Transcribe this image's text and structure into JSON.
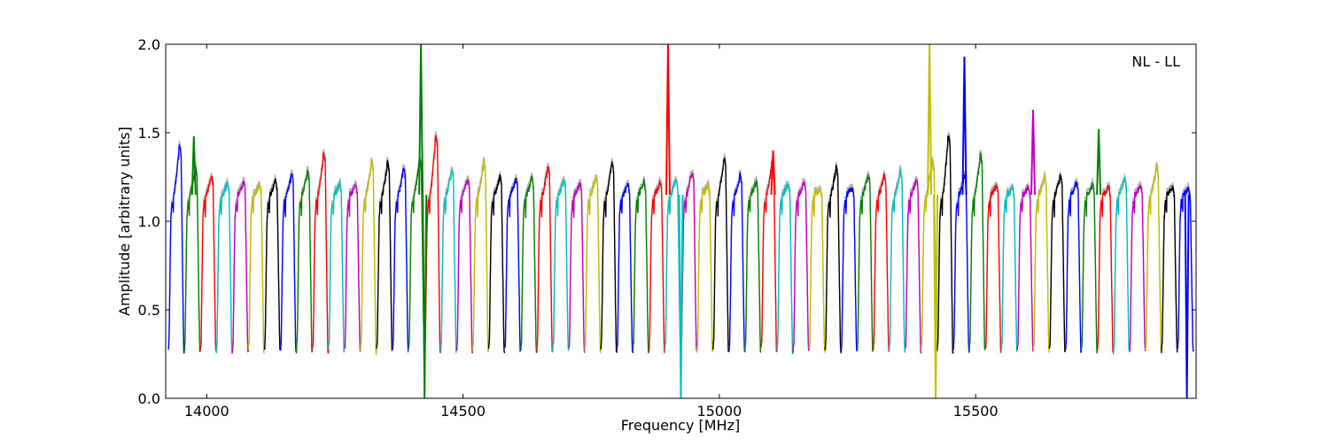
{
  "chart_data": {
    "type": "line",
    "annotation": "NL - LL",
    "xlabel": "Frequency [MHz]",
    "ylabel": "Amplitude [arbitrary units]",
    "xlim": [
      13920,
      15930
    ],
    "ylim": [
      0.0,
      2.0
    ],
    "xticks": [
      14000,
      14500,
      15000,
      15500
    ],
    "yticks": [
      0.0,
      0.5,
      1.0,
      1.5,
      2.0
    ],
    "ytick_labels": [
      "0.0",
      "0.5",
      "1.0",
      "1.5",
      "2.0"
    ],
    "grid": false,
    "legend": "none",
    "color_cycle": [
      "#0000ff",
      "#008000",
      "#ff0000",
      "#00bfbf",
      "#bf00bf",
      "#bfbf00",
      "#000000"
    ],
    "envelope_color": "#b0b0b0",
    "band_start": 13925,
    "band_width": 31.25,
    "band_count": 64,
    "band_floor": 0.27,
    "band_plateau": 1.15,
    "band_peaks": [
      1.42,
      1.3,
      1.25,
      1.21,
      1.22,
      1.2,
      1.23,
      1.26,
      1.28,
      1.38,
      1.21,
      1.2,
      1.33,
      1.33,
      1.3,
      1.35,
      1.48,
      1.28,
      1.24,
      1.33,
      1.25,
      1.24,
      1.24,
      1.31,
      1.23,
      1.21,
      1.24,
      1.33,
      1.2,
      1.22,
      1.22,
      1.24,
      1.28,
      1.2,
      1.35,
      1.26,
      1.22,
      1.33,
      1.21,
      1.22,
      1.18,
      1.3,
      1.19,
      1.26,
      1.26,
      1.28,
      1.23,
      1.33,
      1.48,
      1.25,
      1.37,
      1.2,
      1.18,
      1.19,
      1.25,
      1.26,
      1.22,
      1.21,
      1.19,
      1.24,
      1.2,
      1.3,
      1.19,
      1.18
    ],
    "spikes": [
      {
        "x": 13975,
        "y": 1.48,
        "band_color": "#008000"
      },
      {
        "x": 14418,
        "y": 2.0,
        "band_color": "#008000"
      },
      {
        "x": 14425,
        "y": 0.0,
        "band_color": "#008000"
      },
      {
        "x": 14900,
        "y": 2.0,
        "band_color": "#ff0000"
      },
      {
        "x": 14925,
        "y": 0.0,
        "band_color": "#00bfbf"
      },
      {
        "x": 15105,
        "y": 1.4,
        "band_color": "#ff0000"
      },
      {
        "x": 15410,
        "y": 2.0,
        "band_color": "#bfbf00"
      },
      {
        "x": 15422,
        "y": 0.0,
        "band_color": "#bfbf00"
      },
      {
        "x": 15478,
        "y": 1.93,
        "band_color": "#0000ff"
      },
      {
        "x": 15612,
        "y": 1.63,
        "band_color": "#bf00bf"
      },
      {
        "x": 15740,
        "y": 1.52,
        "band_color": "#008000"
      },
      {
        "x": 15912,
        "y": 0.0,
        "band_color": "#0000ff"
      }
    ]
  }
}
